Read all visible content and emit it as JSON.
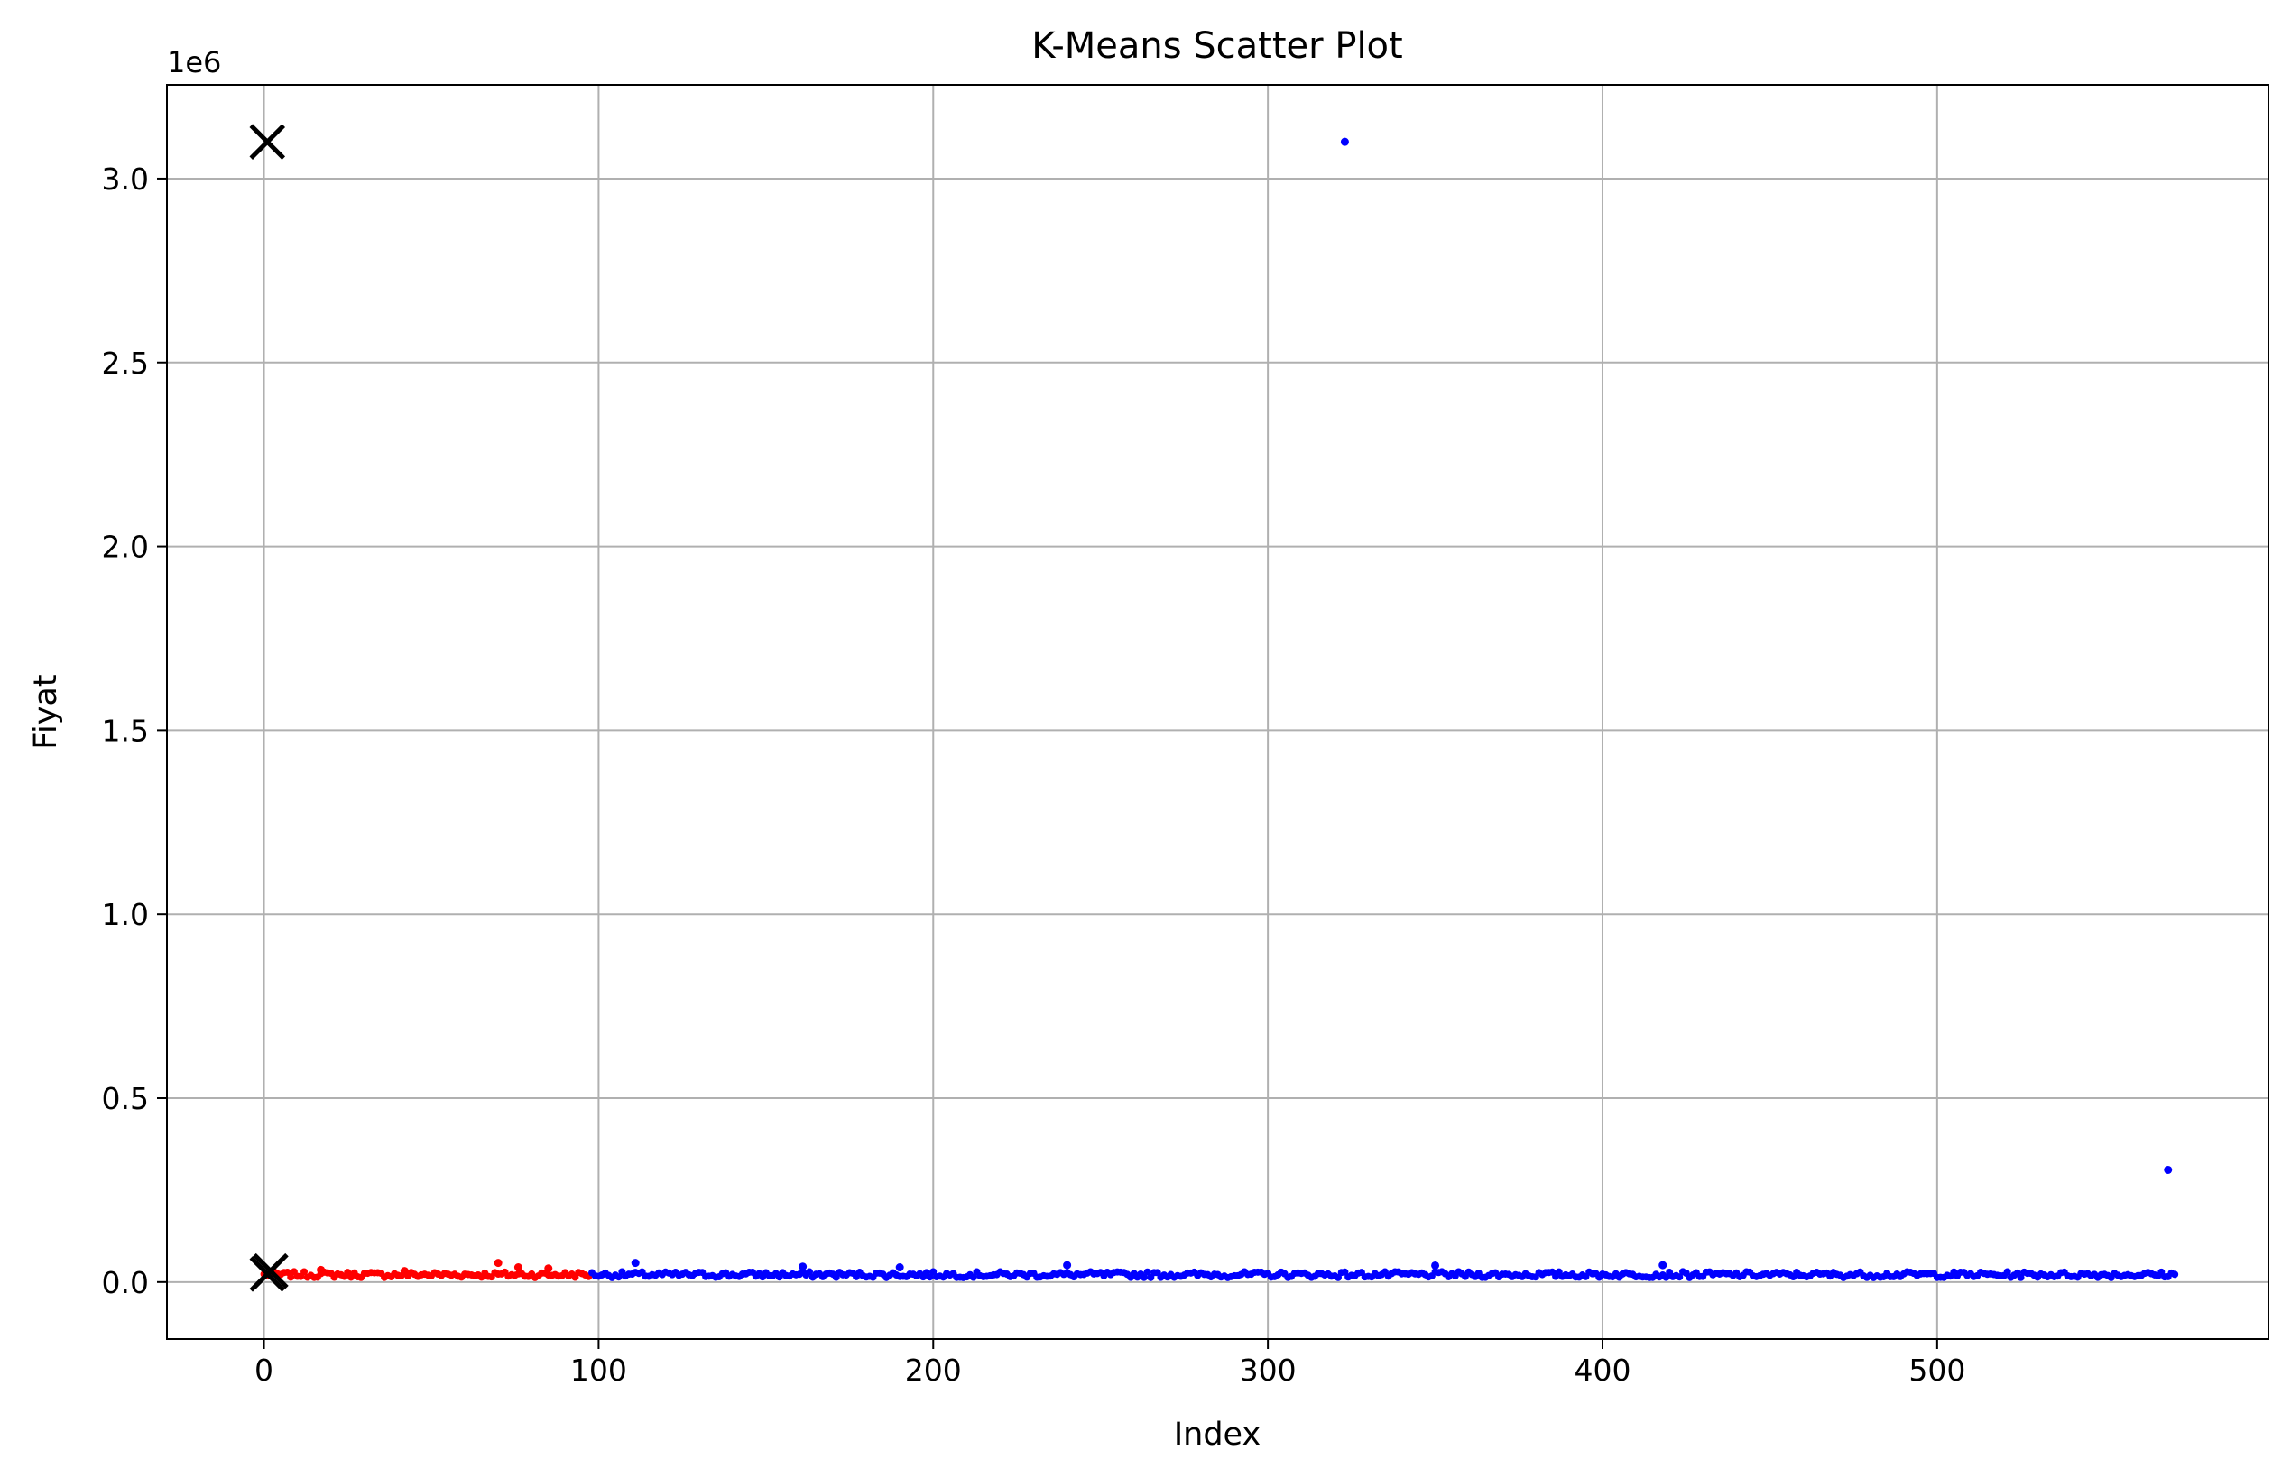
{
  "chart_data": {
    "type": "scatter",
    "title": "K-Means Scatter Plot",
    "xlabel": "Index",
    "ylabel": "Fiyat",
    "y_offset_label": "1e6",
    "xlim": [
      -29,
      599
    ],
    "ylim": [
      -155000,
      3255000
    ],
    "x_ticks": [
      0,
      100,
      200,
      300,
      400,
      500
    ],
    "x_tick_labels": [
      "0",
      "100",
      "200",
      "300",
      "400",
      "500"
    ],
    "y_ticks": [
      0,
      500000,
      1000000,
      1500000,
      2000000,
      2500000,
      3000000
    ],
    "y_tick_labels": [
      "0.0",
      "0.5",
      "1.0",
      "1.5",
      "2.0",
      "2.5",
      "3.0"
    ],
    "grid": true,
    "legend": "none",
    "colors": {
      "cluster_0": "#ff0000",
      "cluster_1": "#0000ff",
      "centroid": "#000000"
    },
    "series": [
      {
        "cluster": 0,
        "color": "#ff0000",
        "x_range": [
          0,
          97
        ],
        "typical_y": 20000,
        "highlights": [
          {
            "x": 70,
            "y": 52000
          },
          {
            "x": 76,
            "y": 40000
          },
          {
            "x": 85,
            "y": 37000
          },
          {
            "x": 17,
            "y": 33000
          },
          {
            "x": 42,
            "y": 30000
          }
        ]
      },
      {
        "cluster": 1,
        "color": "#0000ff",
        "x_range": [
          98,
          571
        ],
        "typical_y": 20000,
        "highlights": [
          {
            "x": 323,
            "y": 3100000
          },
          {
            "x": 569,
            "y": 305000
          },
          {
            "x": 111,
            "y": 52000
          },
          {
            "x": 240,
            "y": 46000
          },
          {
            "x": 350,
            "y": 45000
          },
          {
            "x": 418,
            "y": 46000
          },
          {
            "x": 161,
            "y": 42000
          },
          {
            "x": 190,
            "y": 40000
          }
        ]
      }
    ],
    "centroids": [
      {
        "x": 1,
        "y": 3100000,
        "marker": "x"
      },
      {
        "x": 1,
        "y": 22000,
        "marker": "x"
      },
      {
        "x": 2,
        "y": 30000,
        "marker": "x"
      }
    ]
  }
}
